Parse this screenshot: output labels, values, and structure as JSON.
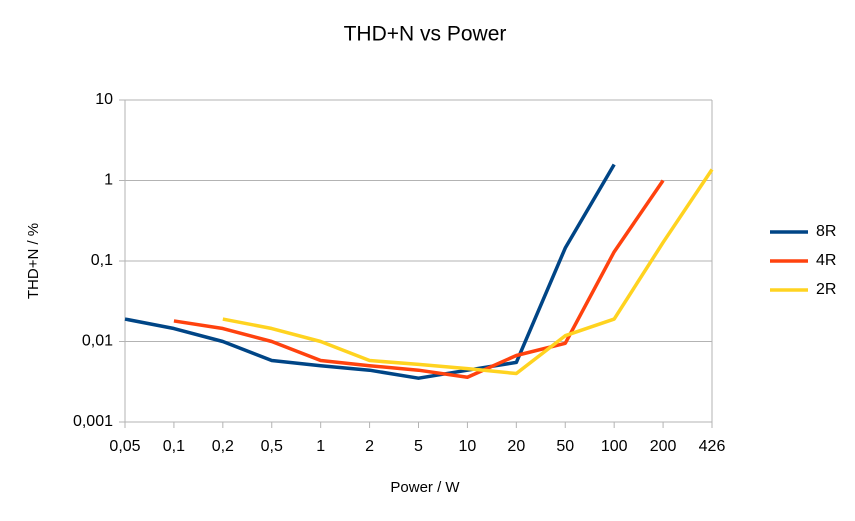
{
  "chart_data": {
    "type": "line",
    "title": "THD+N vs Power",
    "x_label": "Power / W",
    "y_label": "THD+N / %",
    "categories": [
      "0,05",
      "0,1",
      "0,2",
      "0,5",
      "1",
      "2",
      "5",
      "10",
      "20",
      "50",
      "100",
      "200",
      "426"
    ],
    "series": [
      {
        "name": "8R",
        "color": "#004586",
        "values": [
          0.019,
          0.0145,
          0.01,
          0.0058,
          0.005,
          0.0044,
          0.0035,
          0.0044,
          0.0055,
          0.145,
          1.58,
          null,
          null
        ]
      },
      {
        "name": "4R",
        "color": "#ff420e",
        "values": [
          null,
          0.018,
          0.0145,
          0.01,
          0.0058,
          0.005,
          0.0044,
          0.0036,
          0.0067,
          0.0095,
          0.13,
          1,
          null
        ]
      },
      {
        "name": "2R",
        "color": "#ffd320",
        "values": [
          null,
          null,
          0.019,
          0.0145,
          0.01,
          0.0058,
          0.0052,
          0.0046,
          0.004,
          0.0118,
          0.019,
          0.17,
          1.37
        ]
      }
    ],
    "ylim": [
      0.001,
      10
    ],
    "log_y": true,
    "yticks": [
      {
        "value": 0.001,
        "label": "0,001"
      },
      {
        "value": 0.01,
        "label": "0,01"
      },
      {
        "value": 0.1,
        "label": "0,1"
      },
      1,
      10
    ],
    "grid": true,
    "legend": "right"
  }
}
